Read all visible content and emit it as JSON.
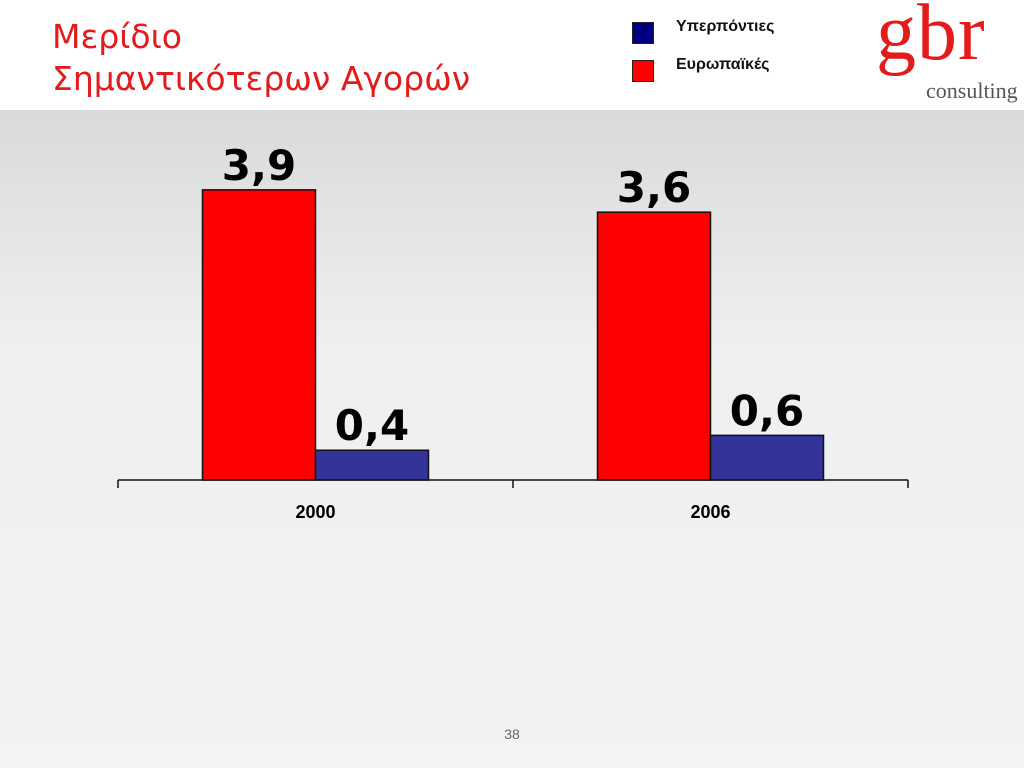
{
  "slide": {
    "title_lines": [
      "Μερίδιο",
      "Σημαντικότερων Αγορών"
    ],
    "page_number": "38",
    "logo": {
      "main": "gbr",
      "sub": "consulting"
    }
  },
  "colors": {
    "title": "#e31b1b",
    "series_blue": "#333399",
    "series_red": "#ff0000",
    "legend_blue": "#000080",
    "legend_red": "#ff0000"
  },
  "chart_data": {
    "type": "bar",
    "categories": [
      "2000",
      "2006"
    ],
    "series": [
      {
        "name": "Ευρωπαϊκές",
        "values": [
          3.9,
          3.6
        ],
        "labels": [
          "3,9",
          "3,6"
        ],
        "color": "#ff0000"
      },
      {
        "name": "Υπερπόντιες",
        "values": [
          0.4,
          0.6
        ],
        "labels": [
          "0,4",
          "0,6"
        ],
        "color": "#333399"
      }
    ],
    "legend": [
      {
        "label": "Υπερπόντιες",
        "color": "#000080"
      },
      {
        "label": "Ευρωπαϊκές",
        "color": "#ff0000"
      }
    ],
    "legend_position": "top-right",
    "ylim": [
      0,
      4
    ],
    "grid": false,
    "title": "",
    "xlabel": "",
    "ylabel": ""
  }
}
